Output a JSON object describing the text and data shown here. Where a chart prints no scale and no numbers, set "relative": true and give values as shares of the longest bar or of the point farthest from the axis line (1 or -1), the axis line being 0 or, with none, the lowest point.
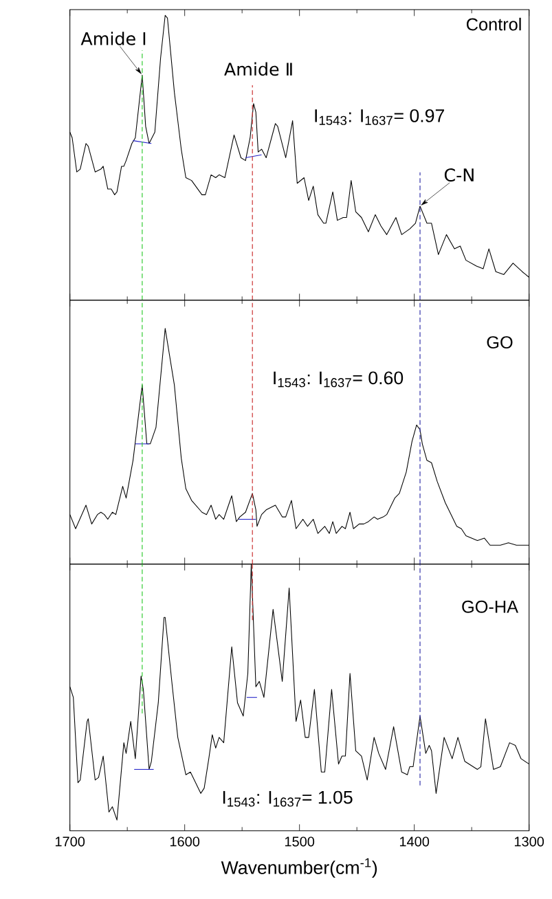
{
  "chart_data": [
    {
      "type": "line",
      "title": "Control",
      "relative": true,
      "xlim": [
        1700,
        1300
      ],
      "xticks": [
        1700,
        {
          "value": 1650,
          "label": null
        },
        1600,
        {
          "value": 1550,
          "label": null
        },
        1500,
        {
          "value": 1450,
          "label": null
        },
        1400,
        {
          "value": 1350,
          "label": null
        },
        1300
      ],
      "tick_labels": false,
      "series": [
        {
          "color": "#000000",
          "x": [
            1700,
            1698,
            1694,
            1691,
            1686,
            1684,
            1678,
            1673,
            1671,
            1667,
            1664,
            1661,
            1659,
            1655,
            1653,
            1651,
            1646,
            1643,
            1637,
            1634,
            1631,
            1626,
            1621,
            1617,
            1615,
            1609,
            1603,
            1599,
            1594,
            1585,
            1582,
            1577,
            1573,
            1570,
            1565,
            1557,
            1551,
            1547,
            1543,
            1540,
            1538,
            1536,
            1533,
            1529,
            1521,
            1519,
            1512,
            1506,
            1502,
            1496,
            1492,
            1488,
            1484,
            1479,
            1477,
            1471,
            1467,
            1462,
            1459,
            1455,
            1451,
            1446,
            1440,
            1434,
            1429,
            1424,
            1416,
            1411,
            1404,
            1399,
            1395,
            1389,
            1385,
            1379,
            1372,
            1365,
            1360,
            1355,
            1346,
            1340,
            1335,
            1329,
            1322,
            1314,
            1306,
            1300
          ],
          "values": [
            0.59,
            0.57,
            0.45,
            0.46,
            0.55,
            0.54,
            0.45,
            0.46,
            0.47,
            0.39,
            0.39,
            0.37,
            0.38,
            0.47,
            0.47,
            0.49,
            0.55,
            0.57,
            0.79,
            0.61,
            0.55,
            0.59,
            0.85,
            1.0,
            0.99,
            0.73,
            0.53,
            0.43,
            0.42,
            0.37,
            0.37,
            0.44,
            0.43,
            0.44,
            0.43,
            0.58,
            0.5,
            0.49,
            0.57,
            0.69,
            0.66,
            0.52,
            0.53,
            0.5,
            0.62,
            0.61,
            0.5,
            0.63,
            0.41,
            0.43,
            0.35,
            0.4,
            0.3,
            0.27,
            0.27,
            0.38,
            0.28,
            0.29,
            0.29,
            0.42,
            0.31,
            0.29,
            0.24,
            0.3,
            0.26,
            0.23,
            0.29,
            0.23,
            0.25,
            0.27,
            0.33,
            0.27,
            0.27,
            0.16,
            0.23,
            0.18,
            0.19,
            0.14,
            0.12,
            0.11,
            0.18,
            0.1,
            0.09,
            0.13,
            0.1,
            0.08
          ]
        },
        {
          "color": "#2020c8",
          "x": [
            1645,
            1629
          ],
          "values": [
            0.56,
            0.55
          ]
        },
        {
          "color": "#2020c8",
          "x": [
            1547,
            1533
          ],
          "values": [
            0.5,
            0.51
          ]
        }
      ],
      "ref_lines": [
        {
          "axis": "x",
          "value": 1637,
          "color": "#33cc33",
          "line_style": "dashed"
        },
        {
          "axis": "x",
          "value": 1541,
          "color": "#cc3333",
          "line_style": "dashed"
        },
        {
          "axis": "x",
          "value": 1395,
          "color": "#3333aa",
          "line_style": "dashed"
        }
      ],
      "annotations": [
        {
          "text": "Amide Ⅰ",
          "x": 1637,
          "y": 0.79
        },
        {
          "text": "Amide Ⅱ",
          "x": 1541,
          "y": 0.76
        },
        {
          "text": "C-N",
          "x": 1395,
          "y": 0.33
        },
        "I$_{1543}$: I$_{1637}$= 0.97"
      ]
    },
    {
      "type": "line",
      "title": "GO",
      "relative": true,
      "xlim": [
        1700,
        1300
      ],
      "xticks": [
        1700,
        {
          "value": 1650,
          "label": null
        },
        1600,
        {
          "value": 1550,
          "label": null
        },
        1500,
        {
          "value": 1450,
          "label": null
        },
        1400,
        {
          "value": 1350,
          "label": null
        },
        1300
      ],
      "tick_labels": false,
      "series": [
        {
          "color": "#000000",
          "x": [
            1700,
            1695,
            1686,
            1681,
            1676,
            1673,
            1670,
            1667,
            1663,
            1660,
            1654,
            1651,
            1645,
            1637,
            1633,
            1630,
            1625,
            1617,
            1609,
            1603,
            1599,
            1594,
            1585,
            1581,
            1577,
            1573,
            1570,
            1566,
            1559,
            1555,
            1552,
            1547,
            1541,
            1538,
            1537,
            1533,
            1529,
            1521,
            1515,
            1512,
            1507,
            1503,
            1497,
            1493,
            1488,
            1484,
            1478,
            1474,
            1471,
            1468,
            1463,
            1460,
            1456,
            1453,
            1448,
            1444,
            1440,
            1435,
            1432,
            1427,
            1424,
            1417,
            1413,
            1407,
            1402,
            1398,
            1395,
            1393,
            1389,
            1385,
            1380,
            1373,
            1367,
            1363,
            1359,
            1355,
            1345,
            1339,
            1334,
            1325,
            1318,
            1311,
            1300
          ],
          "values": [
            0.21,
            0.15,
            0.25,
            0.17,
            0.21,
            0.22,
            0.21,
            0.19,
            0.22,
            0.21,
            0.33,
            0.28,
            0.44,
            0.76,
            0.51,
            0.51,
            0.58,
            1.0,
            0.76,
            0.45,
            0.32,
            0.27,
            0.22,
            0.21,
            0.25,
            0.19,
            0.21,
            0.19,
            0.29,
            0.18,
            0.2,
            0.22,
            0.3,
            0.23,
            0.16,
            0.21,
            0.23,
            0.25,
            0.2,
            0.2,
            0.27,
            0.15,
            0.19,
            0.16,
            0.19,
            0.13,
            0.16,
            0.13,
            0.18,
            0.13,
            0.16,
            0.15,
            0.22,
            0.15,
            0.17,
            0.17,
            0.18,
            0.2,
            0.19,
            0.2,
            0.21,
            0.28,
            0.3,
            0.39,
            0.52,
            0.59,
            0.57,
            0.51,
            0.44,
            0.43,
            0.35,
            0.26,
            0.2,
            0.16,
            0.15,
            0.12,
            0.1,
            0.11,
            0.08,
            0.08,
            0.09,
            0.08,
            0.08
          ]
        },
        {
          "color": "#2020c8",
          "x": [
            1643,
            1631
          ],
          "values": [
            0.51,
            0.51
          ]
        },
        {
          "color": "#2020c8",
          "x": [
            1553,
            1538
          ],
          "values": [
            0.19,
            0.19
          ]
        }
      ],
      "ref_lines": [
        {
          "axis": "x",
          "value": 1637,
          "color": "#33cc33",
          "line_style": "dashed"
        },
        {
          "axis": "x",
          "value": 1541,
          "color": "#cc3333",
          "line_style": "dashed"
        },
        {
          "axis": "x",
          "value": 1395,
          "color": "#3333aa",
          "line_style": "dashed"
        }
      ],
      "annotations": [
        "I$_{1543}$: I$_{1637}$= 0.60"
      ]
    },
    {
      "type": "line",
      "title": "GO-HA",
      "relative": true,
      "xlim": [
        1700,
        1300
      ],
      "xlabel": "Wavenumber(cm$^{-1}$)",
      "xticks": [
        1700,
        {
          "value": 1650,
          "label": null
        },
        1600,
        {
          "value": 1550,
          "label": null
        },
        1500,
        {
          "value": 1450,
          "label": null
        },
        1400,
        {
          "value": 1350,
          "label": null
        },
        1300
      ],
      "tick_labels": "x",
      "series": [
        {
          "color": "#000000",
          "x": [
            1700,
            1697,
            1693,
            1691,
            1685,
            1684,
            1678,
            1675,
            1671,
            1666,
            1663,
            1659,
            1653,
            1651,
            1647,
            1643,
            1638,
            1636,
            1631,
            1629,
            1623,
            1618,
            1617,
            1611,
            1606,
            1599,
            1595,
            1586,
            1583,
            1579,
            1576,
            1573,
            1570,
            1566,
            1559,
            1554,
            1549,
            1545,
            1542,
            1538,
            1535,
            1531,
            1523,
            1515,
            1509,
            1503,
            1499,
            1495,
            1492,
            1487,
            1481,
            1478,
            1472,
            1466,
            1463,
            1460,
            1456,
            1451,
            1446,
            1441,
            1435,
            1431,
            1425,
            1418,
            1411,
            1406,
            1404,
            1401,
            1395,
            1390,
            1387,
            1385,
            1381,
            1374,
            1367,
            1362,
            1356,
            1345,
            1342,
            1338,
            1331,
            1325,
            1317,
            1312,
            1307,
            1300
          ],
          "values": [
            0.54,
            0.5,
            0.18,
            0.19,
            0.41,
            0.42,
            0.19,
            0.2,
            0.28,
            0.07,
            0.09,
            0.04,
            0.33,
            0.29,
            0.41,
            0.27,
            0.58,
            0.53,
            0.23,
            0.26,
            0.48,
            0.8,
            0.8,
            0.55,
            0.35,
            0.21,
            0.22,
            0.14,
            0.16,
            0.27,
            0.36,
            0.31,
            0.35,
            0.33,
            0.69,
            0.48,
            0.43,
            0.59,
            1.0,
            0.54,
            0.56,
            0.5,
            0.83,
            0.56,
            0.91,
            0.41,
            0.49,
            0.35,
            0.35,
            0.53,
            0.22,
            0.22,
            0.53,
            0.25,
            0.28,
            0.28,
            0.59,
            0.3,
            0.28,
            0.19,
            0.35,
            0.29,
            0.23,
            0.39,
            0.22,
            0.21,
            0.24,
            0.24,
            0.43,
            0.29,
            0.32,
            0.3,
            0.14,
            0.35,
            0.27,
            0.35,
            0.26,
            0.23,
            0.24,
            0.42,
            0.23,
            0.24,
            0.33,
            0.32,
            0.27,
            0.25
          ]
        },
        {
          "color": "#2020c8",
          "x": [
            1644,
            1627
          ],
          "values": [
            0.23,
            0.23
          ]
        },
        {
          "color": "#2020c8",
          "x": [
            1546,
            1537
          ],
          "values": [
            0.5,
            0.5
          ]
        }
      ],
      "ref_lines": [
        {
          "axis": "x",
          "value": 1637,
          "color": "#33cc33",
          "line_style": "dashed"
        },
        {
          "axis": "x",
          "value": 1541,
          "color": "#cc3333",
          "line_style": "dashed"
        },
        {
          "axis": "x",
          "value": 1395,
          "color": "#3333aa",
          "line_style": "dashed"
        }
      ],
      "annotations": [
        "I$_{1543}$: I$_{1637}$= 1.05"
      ]
    }
  ]
}
